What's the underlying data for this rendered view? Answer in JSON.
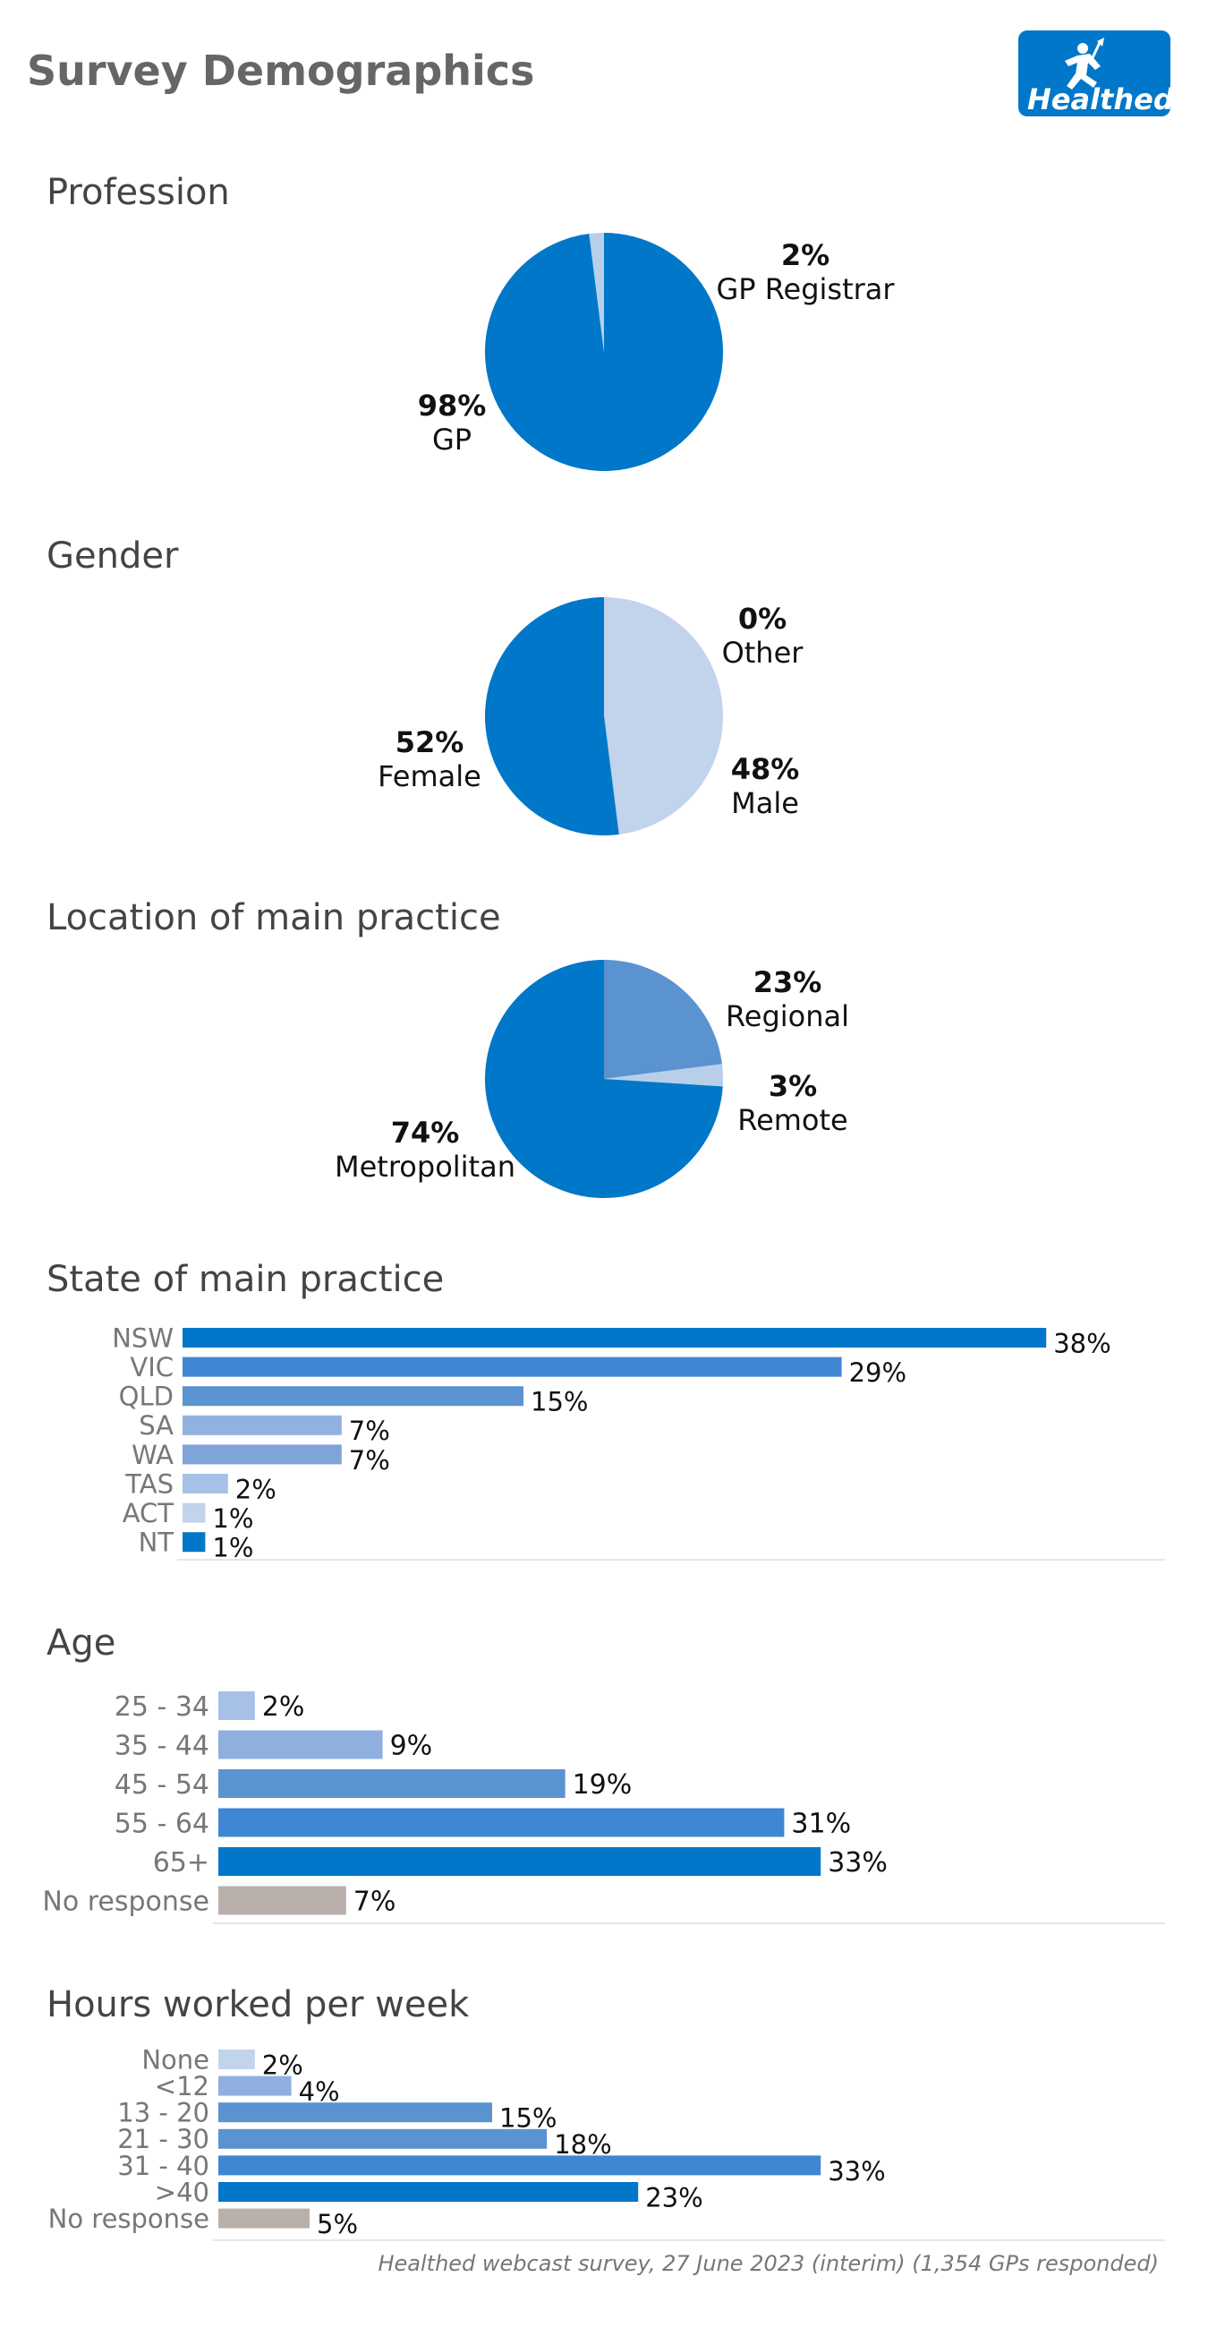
{
  "page": {
    "title": "Survey Demographics",
    "logo_text": "Healthed",
    "footer": "Healthed webcast survey, 27 June 2023 (interim) (1,354 GPs responded)"
  },
  "chart_data": [
    {
      "type": "pie",
      "title": "Profession",
      "categories": [
        "GP",
        "GP Registrar"
      ],
      "values": [
        98,
        2
      ],
      "labels": [
        "98%",
        "2%"
      ],
      "colors": [
        "#0077c8",
        "#b8cfea"
      ]
    },
    {
      "type": "pie",
      "title": "Gender",
      "categories": [
        "Male",
        "Other",
        "Female"
      ],
      "values": [
        48,
        0,
        52
      ],
      "labels": [
        "48%",
        "0%",
        "52%"
      ],
      "colors": [
        "#c2d3ec",
        "#a9c3e6",
        "#0077c8"
      ]
    },
    {
      "type": "pie",
      "title": "Location of main practice",
      "categories": [
        "Regional",
        "Remote",
        "Metropolitan"
      ],
      "values": [
        23,
        3,
        74
      ],
      "labels": [
        "23%",
        "3%",
        "74%"
      ],
      "colors": [
        "#5b93d0",
        "#b8cfea",
        "#0077c8"
      ]
    },
    {
      "type": "bar",
      "orientation": "horizontal",
      "title": "State of main practice",
      "categories": [
        "NSW",
        "VIC",
        "QLD",
        "SA",
        "WA",
        "TAS",
        "ACT",
        "NT"
      ],
      "values": [
        38,
        29,
        15,
        7,
        7,
        2,
        1,
        1
      ],
      "labels": [
        "38%",
        "29%",
        "15%",
        "7%",
        "7%",
        "2%",
        "1%",
        "1%"
      ],
      "colors": [
        "#0077c8",
        "#3f86d3",
        "#5b93d0",
        "#92b1df",
        "#7ea4da",
        "#a7c0e6",
        "#c2d3ec",
        "#0077c8"
      ]
    },
    {
      "type": "bar",
      "orientation": "horizontal",
      "title": "Age",
      "categories": [
        "25 - 34",
        "35 - 44",
        "45 - 54",
        "55 - 64",
        "65+",
        "No response"
      ],
      "values": [
        2,
        9,
        19,
        31,
        33,
        7
      ],
      "labels": [
        "2%",
        "9%",
        "19%",
        "31%",
        "33%",
        "7%"
      ],
      "colors": [
        "#a7c0e6",
        "#8fb0df",
        "#5b93d0",
        "#3f86d3",
        "#0077c8",
        "#b9b0ac"
      ]
    },
    {
      "type": "bar",
      "orientation": "horizontal",
      "title": "Hours worked per week",
      "categories": [
        "None",
        "<12",
        "13 - 20",
        "21 - 30",
        "31 - 40",
        ">40",
        "No response"
      ],
      "values": [
        2,
        4,
        15,
        18,
        33,
        23,
        5
      ],
      "labels": [
        "2%",
        "4%",
        "15%",
        "18%",
        "33%",
        "23%",
        "5%"
      ],
      "colors": [
        "#c2d3ec",
        "#8fb0df",
        "#5b93d0",
        "#5b93d0",
        "#3f86d3",
        "#0077c8",
        "#b9b0ac"
      ]
    }
  ]
}
